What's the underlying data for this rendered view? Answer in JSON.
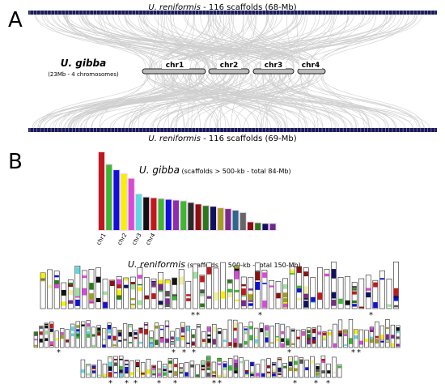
{
  "panel_a": {
    "label": "A",
    "top_track_label_species": "U. reniformis",
    "top_track_label_rest": " - 116 scaffolds (68-Mb)",
    "bottom_track_label_species": "U. reniformis",
    "bottom_track_label_rest": " - 116 scaffolds (69-Mb)",
    "gibba_title": "U. gibba",
    "gibba_subtitle": "(23Mb - 4 chromosomes)",
    "chromosomes": [
      "chr1",
      "chr2",
      "chr3",
      "chr4"
    ]
  },
  "panel_b": {
    "label": "B",
    "gibba_title_species": "U. gibba",
    "gibba_title_rest": " (scaffolds > 500-kb - total 84-Mb)",
    "gibba_bar_labels": [
      "chr1",
      "chr2",
      "chr3",
      "chr4"
    ],
    "gibba_bars": [
      {
        "h": 1.0,
        "color": "#c0191b"
      },
      {
        "h": 0.84,
        "color": "#3cb832"
      },
      {
        "h": 0.77,
        "color": "#1010d8"
      },
      {
        "h": 0.72,
        "color": "#f7f000"
      },
      {
        "h": 0.66,
        "color": "#d84ad8"
      },
      {
        "h": 0.46,
        "color": "#5fd9e0"
      },
      {
        "h": 0.42,
        "color": "#111111"
      },
      {
        "h": 0.41,
        "color": "#c0191b"
      },
      {
        "h": 0.4,
        "color": "#3cb832"
      },
      {
        "h": 0.39,
        "color": "#1010d8"
      },
      {
        "h": 0.38,
        "color": "#8b2fb0"
      },
      {
        "h": 0.37,
        "color": "#3cb832"
      },
      {
        "h": 0.35,
        "color": "#2a2a2a"
      },
      {
        "h": 0.33,
        "color": "#8b1010"
      },
      {
        "h": 0.31,
        "color": "#2a7a1a"
      },
      {
        "h": 0.3,
        "color": "#101060"
      },
      {
        "h": 0.28,
        "color": "#a0a020"
      },
      {
        "h": 0.27,
        "color": "#7a2a8a"
      },
      {
        "h": 0.25,
        "color": "#2a6a8a"
      },
      {
        "h": 0.22,
        "color": "#666666"
      },
      {
        "h": 0.1,
        "color": "#8b1010"
      },
      {
        "h": 0.09,
        "color": "#2a7a1a"
      },
      {
        "h": 0.08,
        "color": "#101060"
      },
      {
        "h": 0.08,
        "color": "#6a2a8a"
      }
    ],
    "reniformis_title_species": "U. reniformis",
    "reniformis_title_rest": " (scaffolds > 500-kb - total  150-Mb)",
    "row1_stars": [
      "*",
      "*",
      "*",
      "*"
    ],
    "row2_stars": [
      "*",
      "*",
      "*",
      "*",
      "*",
      "*",
      "*",
      "*"
    ],
    "row3_stars": [
      "*",
      "*",
      "*",
      "*",
      "*",
      "*",
      "*",
      "*",
      "*",
      "*"
    ]
  },
  "palette": [
    "#c0191b",
    "#3cb832",
    "#1010d8",
    "#f7f000",
    "#d84ad8",
    "#5fd9e0",
    "#111111",
    "#8b1010",
    "#2a7a1a",
    "#101060",
    "#a0a020",
    "#7a2a8a",
    "#555555",
    "#f0f0a0",
    "#a0e0a0"
  ]
}
